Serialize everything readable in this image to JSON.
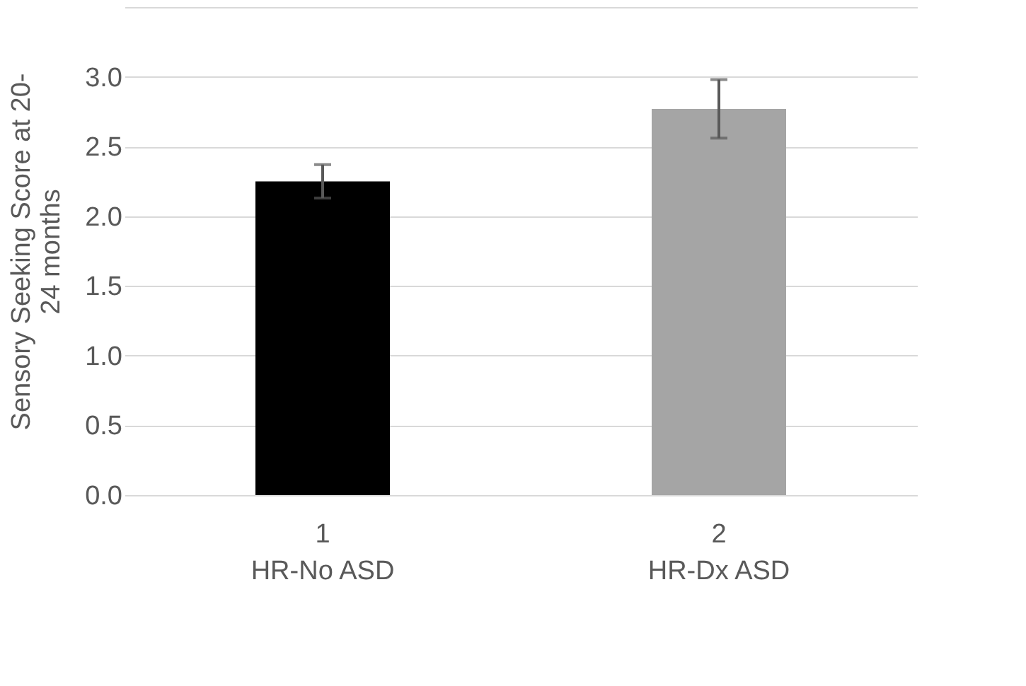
{
  "chart_data": {
    "type": "bar",
    "ylabel": "Sensory Seeking Score at 20-\n24 months",
    "categories": [
      "1\nHR-No ASD",
      "2\nHR-Dx ASD"
    ],
    "values": [
      2.25,
      2.77
    ],
    "colors": [
      "#000000",
      "#a5a5a5"
    ],
    "errors": [
      0.12,
      0.21
    ],
    "ylim": [
      0,
      3.5
    ],
    "yticks": [
      {
        "value": 0,
        "label": "0.0"
      },
      {
        "value": 0.5,
        "label": "0.5"
      },
      {
        "value": 1,
        "label": "1.0"
      },
      {
        "value": 1.5,
        "label": "1.5"
      },
      {
        "value": 2,
        "label": "2.0"
      },
      {
        "value": 2.5,
        "label": "2.5"
      },
      {
        "value": 3,
        "label": "3.0"
      },
      {
        "value": 3.5,
        "label": null
      }
    ],
    "grid": "y"
  }
}
